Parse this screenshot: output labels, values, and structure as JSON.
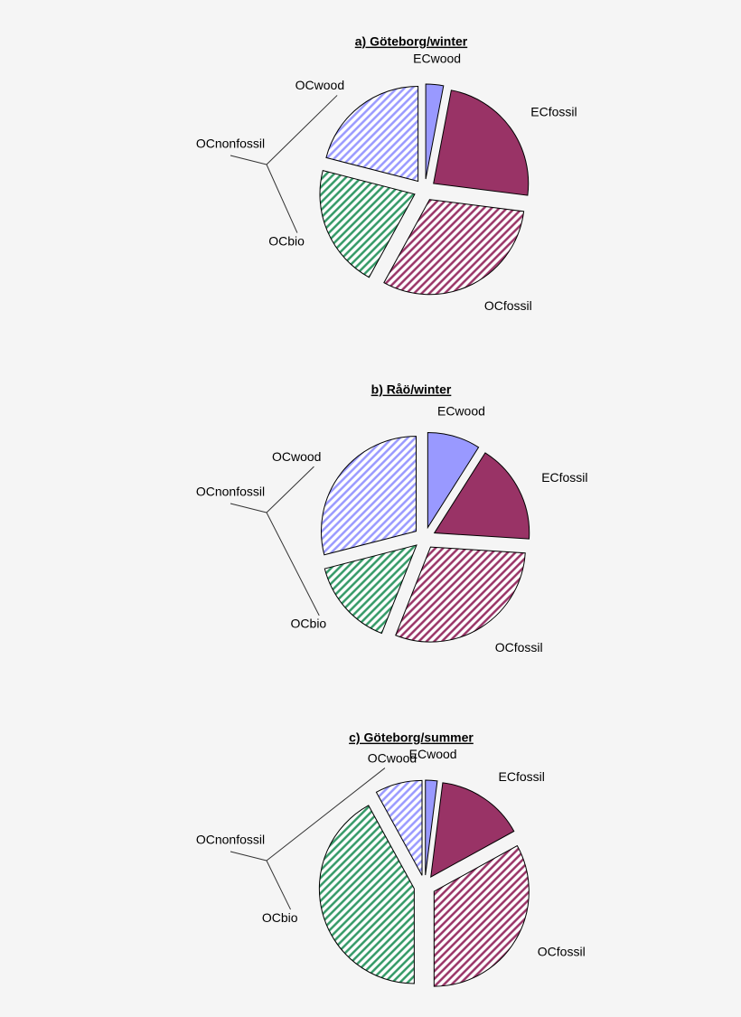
{
  "chart_data": [
    {
      "type": "pie",
      "title": "a) Göteborg/winter",
      "categories": [
        "ECwood",
        "ECfossil",
        "OCfossil",
        "OCbio",
        "OCwood"
      ],
      "values": [
        3,
        24,
        31,
        21,
        21
      ],
      "colors": [
        "#9999ff",
        "#993366",
        "#993366",
        "#339966",
        "#9999ff"
      ],
      "hatched": [
        false,
        false,
        true,
        true,
        true
      ],
      "annotation": "OCnonfossil"
    },
    {
      "type": "pie",
      "title": "b) Råö/winter",
      "categories": [
        "ECwood",
        "ECfossil",
        "OCfossil",
        "OCbio",
        "OCwood"
      ],
      "values": [
        9,
        17,
        30,
        15,
        29
      ],
      "colors": [
        "#9999ff",
        "#993366",
        "#993366",
        "#339966",
        "#9999ff"
      ],
      "hatched": [
        false,
        false,
        true,
        true,
        true
      ],
      "annotation": "OCnonfossil"
    },
    {
      "type": "pie",
      "title": "c) Göteborg/summer",
      "categories": [
        "ECwood",
        "ECfossil",
        "OCfossil",
        "OCbio",
        "OCwood"
      ],
      "values": [
        2,
        15,
        33,
        42,
        8
      ],
      "colors": [
        "#9999ff",
        "#993366",
        "#993366",
        "#339966",
        "#9999ff"
      ],
      "hatched": [
        false,
        false,
        true,
        true,
        true
      ],
      "annotation": "OCnonfossil"
    }
  ]
}
